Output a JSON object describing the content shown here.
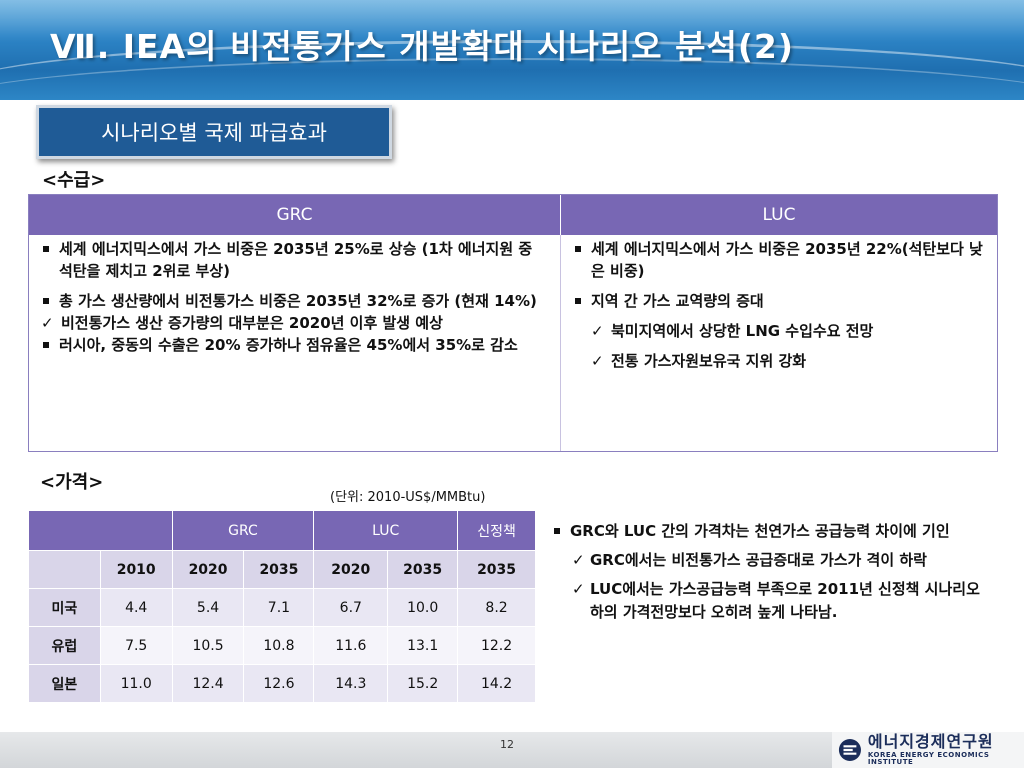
{
  "header": {
    "title": "Ⅶ. IEA의 비전통가스 개발확대 시나리오 분석(2)"
  },
  "section_box": "시나리오별 국제 파급효과",
  "supply": {
    "heading": "<수급>",
    "col_left": "GRC",
    "col_right": "LUC",
    "left_items": [
      {
        "type": "bullet",
        "text": "세계 에너지믹스에서 가스 비중은 2035년 25%로 상승 (1차 에너지원 중 석탄을 제치고 2위로 부상)"
      },
      {
        "type": "bullet",
        "text": "총 가스 생산량에서 비전통가스 비중은 2035년 32%로 증가 (현재 14%)"
      },
      {
        "type": "check",
        "text": "비전통가스 생산 증가량의 대부분은 2020년 이후 발생 예상"
      },
      {
        "type": "bullet",
        "text": "러시아, 중동의 수출은 20% 증가하나 점유율은 45%에서 35%로 감소"
      }
    ],
    "right_items": [
      {
        "type": "bullet",
        "text": "세계 에너지믹스에서 가스 비중은 2035년 22%(석탄보다 낮은 비중)"
      },
      {
        "type": "bullet",
        "text": "지역 간 가스 교역량의 증대"
      },
      {
        "type": "check",
        "text": "북미지역에서 상당한 LNG 수입수요 전망"
      },
      {
        "type": "check",
        "text": "전통 가스자원보유국 지위 강화"
      }
    ]
  },
  "price": {
    "heading": "<가격>",
    "unit": "(단위: 2010-US$/MMBtu)",
    "groups": [
      "GRC",
      "LUC",
      "신정책"
    ],
    "years": [
      "2010",
      "2020",
      "2035",
      "2020",
      "2035",
      "2035"
    ],
    "rows": [
      {
        "region": "미국",
        "values": [
          "4.4",
          "5.4",
          "7.1",
          "6.7",
          "10.0",
          "8.2"
        ]
      },
      {
        "region": "유럽",
        "values": [
          "7.5",
          "10.5",
          "10.8",
          "11.6",
          "13.1",
          "12.2"
        ]
      },
      {
        "region": "일본",
        "values": [
          "11.0",
          "12.4",
          "12.6",
          "14.3",
          "15.2",
          "14.2"
        ]
      }
    ]
  },
  "price_notes": [
    {
      "type": "bullet",
      "text": "GRC와 LUC 간의 가격차는 천연가스 공급능력 차이에 기인"
    },
    {
      "type": "check",
      "text": "GRC에서는 비전통가스  공급증대로 가스가 격이 하락"
    },
    {
      "type": "check",
      "text": "LUC에서는 가스공급능력 부족으로 2011년 신정책 시나리오 하의 가격전망보다 오히려 높게 나타남."
    }
  ],
  "footer": {
    "page_number": "12",
    "logo_ko": "에너지경제연구원",
    "logo_en": "KOREA ENERGY ECONOMICS INSTITUTE"
  }
}
